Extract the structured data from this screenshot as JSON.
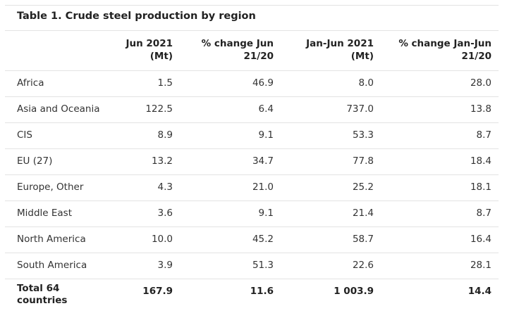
{
  "table": {
    "title": "Table 1. Crude steel production by region",
    "headers": [
      [],
      [
        "Jun 2021",
        "(Mt)"
      ],
      [
        "% change Jun",
        "21/20"
      ],
      [
        "Jan-Jun 2021",
        "(Mt)"
      ],
      [
        "% change Jan-Jun",
        "21/20"
      ]
    ],
    "rows": [
      [
        "Africa",
        "1.5",
        "46.9",
        "8.0",
        "28.0"
      ],
      [
        "Asia and Oceania",
        "122.5",
        "6.4",
        "737.0",
        "13.8"
      ],
      [
        "CIS",
        "8.9",
        "9.1",
        "53.3",
        "8.7"
      ],
      [
        "EU (27)",
        "13.2",
        "34.7",
        "77.8",
        "18.4"
      ],
      [
        "Europe, Other",
        "4.3",
        "21.0",
        "25.2",
        "18.1"
      ],
      [
        "Middle East",
        "3.6",
        "9.1",
        "21.4",
        "8.7"
      ],
      [
        "North America",
        "10.0",
        "45.2",
        "58.7",
        "16.4"
      ],
      [
        "South America",
        "3.9",
        "51.3",
        "22.6",
        "28.1"
      ],
      [
        "Total 64 countries",
        "167.9",
        "11.6",
        "1 003.9",
        "14.4"
      ]
    ]
  }
}
